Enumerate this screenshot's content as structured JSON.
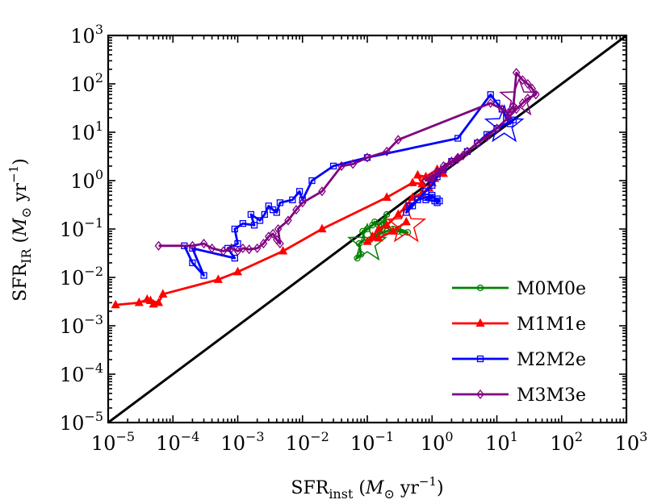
{
  "chart_data": {
    "type": "line",
    "xscale": "log",
    "yscale": "log",
    "xlim": [
      1e-05,
      1000
    ],
    "ylim": [
      1e-05,
      1000
    ],
    "xlabel": {
      "main": "SFR",
      "sub": "inst",
      "unit_prefix": "(",
      "unit_symbol": "M",
      "unit_subscript": "⊙",
      "unit_suffix": " yr",
      "unit_exp": "−1",
      "close": ")"
    },
    "ylabel": {
      "main": "SFR",
      "sub": "IR",
      "unit_prefix": "(",
      "unit_symbol": "M",
      "unit_subscript": "⊙",
      "unit_suffix": " yr",
      "unit_exp": "−1",
      "close": ")"
    },
    "x_ticks": [
      {
        "value": 1e-05,
        "base": "10",
        "exp": "−5"
      },
      {
        "value": 0.0001,
        "base": "10",
        "exp": "−4"
      },
      {
        "value": 0.001,
        "base": "10",
        "exp": "−3"
      },
      {
        "value": 0.01,
        "base": "10",
        "exp": "−2"
      },
      {
        "value": 0.1,
        "base": "10",
        "exp": "−1"
      },
      {
        "value": 1,
        "base": "10",
        "exp": "0"
      },
      {
        "value": 10,
        "base": "10",
        "exp": "1"
      },
      {
        "value": 100,
        "base": "10",
        "exp": "2"
      },
      {
        "value": 1000,
        "base": "10",
        "exp": "3"
      }
    ],
    "y_ticks": [
      {
        "value": 1e-05,
        "base": "10",
        "exp": "−5"
      },
      {
        "value": 0.0001,
        "base": "10",
        "exp": "−4"
      },
      {
        "value": 0.001,
        "base": "10",
        "exp": "−3"
      },
      {
        "value": 0.01,
        "base": "10",
        "exp": "−2"
      },
      {
        "value": 0.1,
        "base": "10",
        "exp": "−1"
      },
      {
        "value": 1,
        "base": "10",
        "exp": "0"
      },
      {
        "value": 10,
        "base": "10",
        "exp": "1"
      },
      {
        "value": 100,
        "base": "10",
        "exp": "2"
      },
      {
        "value": 1000,
        "base": "10",
        "exp": "3"
      }
    ],
    "reference_line": {
      "name": "one-to-one",
      "x": [
        1e-05,
        1000
      ],
      "y": [
        1e-05,
        1000
      ],
      "color": "#000000"
    },
    "legend_position": "lower-right",
    "series": [
      {
        "name": "M0M0e",
        "color": "#008000",
        "marker": "circle",
        "star": {
          "x": 0.1,
          "y": 0.05
        },
        "points": [
          [
            0.07,
            0.025
          ],
          [
            0.08,
            0.03
          ],
          [
            0.075,
            0.05
          ],
          [
            0.09,
            0.06
          ],
          [
            0.085,
            0.09
          ],
          [
            0.1,
            0.1
          ],
          [
            0.12,
            0.12
          ],
          [
            0.13,
            0.14
          ],
          [
            0.15,
            0.12
          ],
          [
            0.18,
            0.15
          ],
          [
            0.2,
            0.2
          ],
          [
            0.17,
            0.1
          ],
          [
            0.14,
            0.075
          ],
          [
            0.11,
            0.06
          ],
          [
            0.13,
            0.07
          ],
          [
            0.16,
            0.08
          ],
          [
            0.2,
            0.09
          ],
          [
            0.25,
            0.1
          ],
          [
            0.3,
            0.09
          ],
          [
            0.35,
            0.085
          ],
          [
            0.42,
            0.085
          ],
          [
            0.3,
            0.1
          ]
        ]
      },
      {
        "name": "M1M1e",
        "color": "#ff0000",
        "marker": "triangle",
        "star": {
          "x": 0.4,
          "y": 0.12
        },
        "points": [
          [
            1.3e-05,
            0.0027
          ],
          [
            3e-05,
            0.003
          ],
          [
            4e-05,
            0.0035
          ],
          [
            5e-05,
            0.0028
          ],
          [
            4.5e-05,
            0.0033
          ],
          [
            6e-05,
            0.003
          ],
          [
            7e-05,
            0.0045
          ],
          [
            0.0005,
            0.009
          ],
          [
            0.001,
            0.013
          ],
          [
            0.005,
            0.035
          ],
          [
            0.02,
            0.1
          ],
          [
            0.2,
            0.45
          ],
          [
            0.5,
            0.9
          ],
          [
            0.7,
            0.85
          ],
          [
            0.6,
            1.3
          ],
          [
            0.8,
            1.2
          ],
          [
            1.2,
            1.7
          ],
          [
            1.5,
            1.4
          ],
          [
            1.1,
            1.1
          ],
          [
            1,
            0.9
          ],
          [
            0.9,
            0.7
          ],
          [
            0.7,
            0.55
          ],
          [
            0.5,
            0.45
          ],
          [
            0.4,
            0.3
          ],
          [
            0.3,
            0.2
          ],
          [
            0.2,
            0.12
          ],
          [
            0.15,
            0.1
          ],
          [
            0.12,
            0.07
          ],
          [
            0.1,
            0.055
          ],
          [
            0.15,
            0.065
          ],
          [
            0.25,
            0.09
          ],
          [
            0.4,
            0.14
          ]
        ]
      },
      {
        "name": "M2M2e",
        "color": "#0000ff",
        "marker": "square",
        "star": {
          "x": 13,
          "y": 14
        },
        "points": [
          [
            0.00015,
            0.045
          ],
          [
            0.0002,
            0.02
          ],
          [
            0.0003,
            0.011
          ],
          [
            0.0002,
            0.04
          ],
          [
            0.0009,
            0.025
          ],
          [
            0.0007,
            0.04
          ],
          [
            0.001,
            0.05
          ],
          [
            0.0009,
            0.1
          ],
          [
            0.0012,
            0.13
          ],
          [
            0.0018,
            0.12
          ],
          [
            0.0016,
            0.2
          ],
          [
            0.0022,
            0.15
          ],
          [
            0.0026,
            0.2
          ],
          [
            0.003,
            0.3
          ],
          [
            0.0035,
            0.25
          ],
          [
            0.004,
            0.22
          ],
          [
            0.0045,
            0.35
          ],
          [
            0.007,
            0.4
          ],
          [
            0.009,
            0.6
          ],
          [
            0.01,
            0.4
          ],
          [
            0.014,
            1
          ],
          [
            0.03,
            2
          ],
          [
            0.1,
            3
          ],
          [
            2.5,
            7.5
          ],
          [
            8,
            60
          ],
          [
            10,
            40
          ],
          [
            12,
            30
          ],
          [
            14,
            20
          ],
          [
            16,
            15
          ],
          [
            18,
            18
          ],
          [
            10,
            12
          ],
          [
            7,
            9
          ],
          [
            5,
            6
          ],
          [
            3.5,
            4
          ],
          [
            2,
            2.5
          ],
          [
            1.5,
            1.7
          ],
          [
            1.2,
            1.2
          ],
          [
            1,
            0.8
          ],
          [
            0.8,
            0.6
          ],
          [
            0.6,
            0.4
          ],
          [
            0.5,
            0.3
          ],
          [
            0.4,
            0.22
          ],
          [
            0.45,
            0.3
          ],
          [
            0.6,
            0.4
          ],
          [
            0.8,
            0.45
          ],
          [
            1,
            0.5
          ],
          [
            1.2,
            0.35
          ],
          [
            1.3,
            0.38
          ],
          [
            1.2,
            0.42
          ],
          [
            1,
            0.45
          ],
          [
            0.8,
            0.4
          ],
          [
            1.1,
            0.38
          ]
        ]
      },
      {
        "name": "M3M3e",
        "color": "#800080",
        "marker": "diamond",
        "star": {
          "x": 22,
          "y": 50
        },
        "points": [
          [
            6e-05,
            0.045
          ],
          [
            0.0002,
            0.045
          ],
          [
            0.0003,
            0.05
          ],
          [
            0.0004,
            0.04
          ],
          [
            0.0006,
            0.035
          ],
          [
            0.0008,
            0.04
          ],
          [
            0.001,
            0.035
          ],
          [
            0.0012,
            0.04
          ],
          [
            0.0015,
            0.038
          ],
          [
            0.002,
            0.04
          ],
          [
            0.0025,
            0.05
          ],
          [
            0.003,
            0.07
          ],
          [
            0.0035,
            0.08
          ],
          [
            0.004,
            0.06
          ],
          [
            0.0045,
            0.05
          ],
          [
            0.0042,
            0.1
          ],
          [
            0.006,
            0.15
          ],
          [
            0.008,
            0.25
          ],
          [
            0.01,
            0.35
          ],
          [
            0.02,
            0.6
          ],
          [
            0.04,
            2
          ],
          [
            0.06,
            2.2
          ],
          [
            0.1,
            3
          ],
          [
            0.2,
            4
          ],
          [
            0.3,
            7
          ],
          [
            8,
            40
          ],
          [
            12,
            30
          ],
          [
            15,
            25
          ],
          [
            18,
            35
          ],
          [
            20,
            170
          ],
          [
            25,
            120
          ],
          [
            30,
            100
          ],
          [
            35,
            80
          ],
          [
            40,
            60
          ],
          [
            30,
            50
          ],
          [
            25,
            40
          ],
          [
            20,
            30
          ],
          [
            15,
            20
          ],
          [
            10,
            12
          ],
          [
            7,
            8
          ],
          [
            5,
            6
          ],
          [
            3.5,
            4
          ],
          [
            2.5,
            3
          ],
          [
            2,
            2.5
          ],
          [
            1.5,
            2
          ],
          [
            1.2,
            1.5
          ],
          [
            1,
            1.2
          ],
          [
            0.8,
            1
          ],
          [
            1,
            1.1
          ],
          [
            1.3,
            1.5
          ],
          [
            1.6,
            1.9
          ],
          [
            2,
            2.4
          ],
          [
            2.5,
            2.8
          ],
          [
            3,
            3.3
          ]
        ]
      }
    ]
  }
}
